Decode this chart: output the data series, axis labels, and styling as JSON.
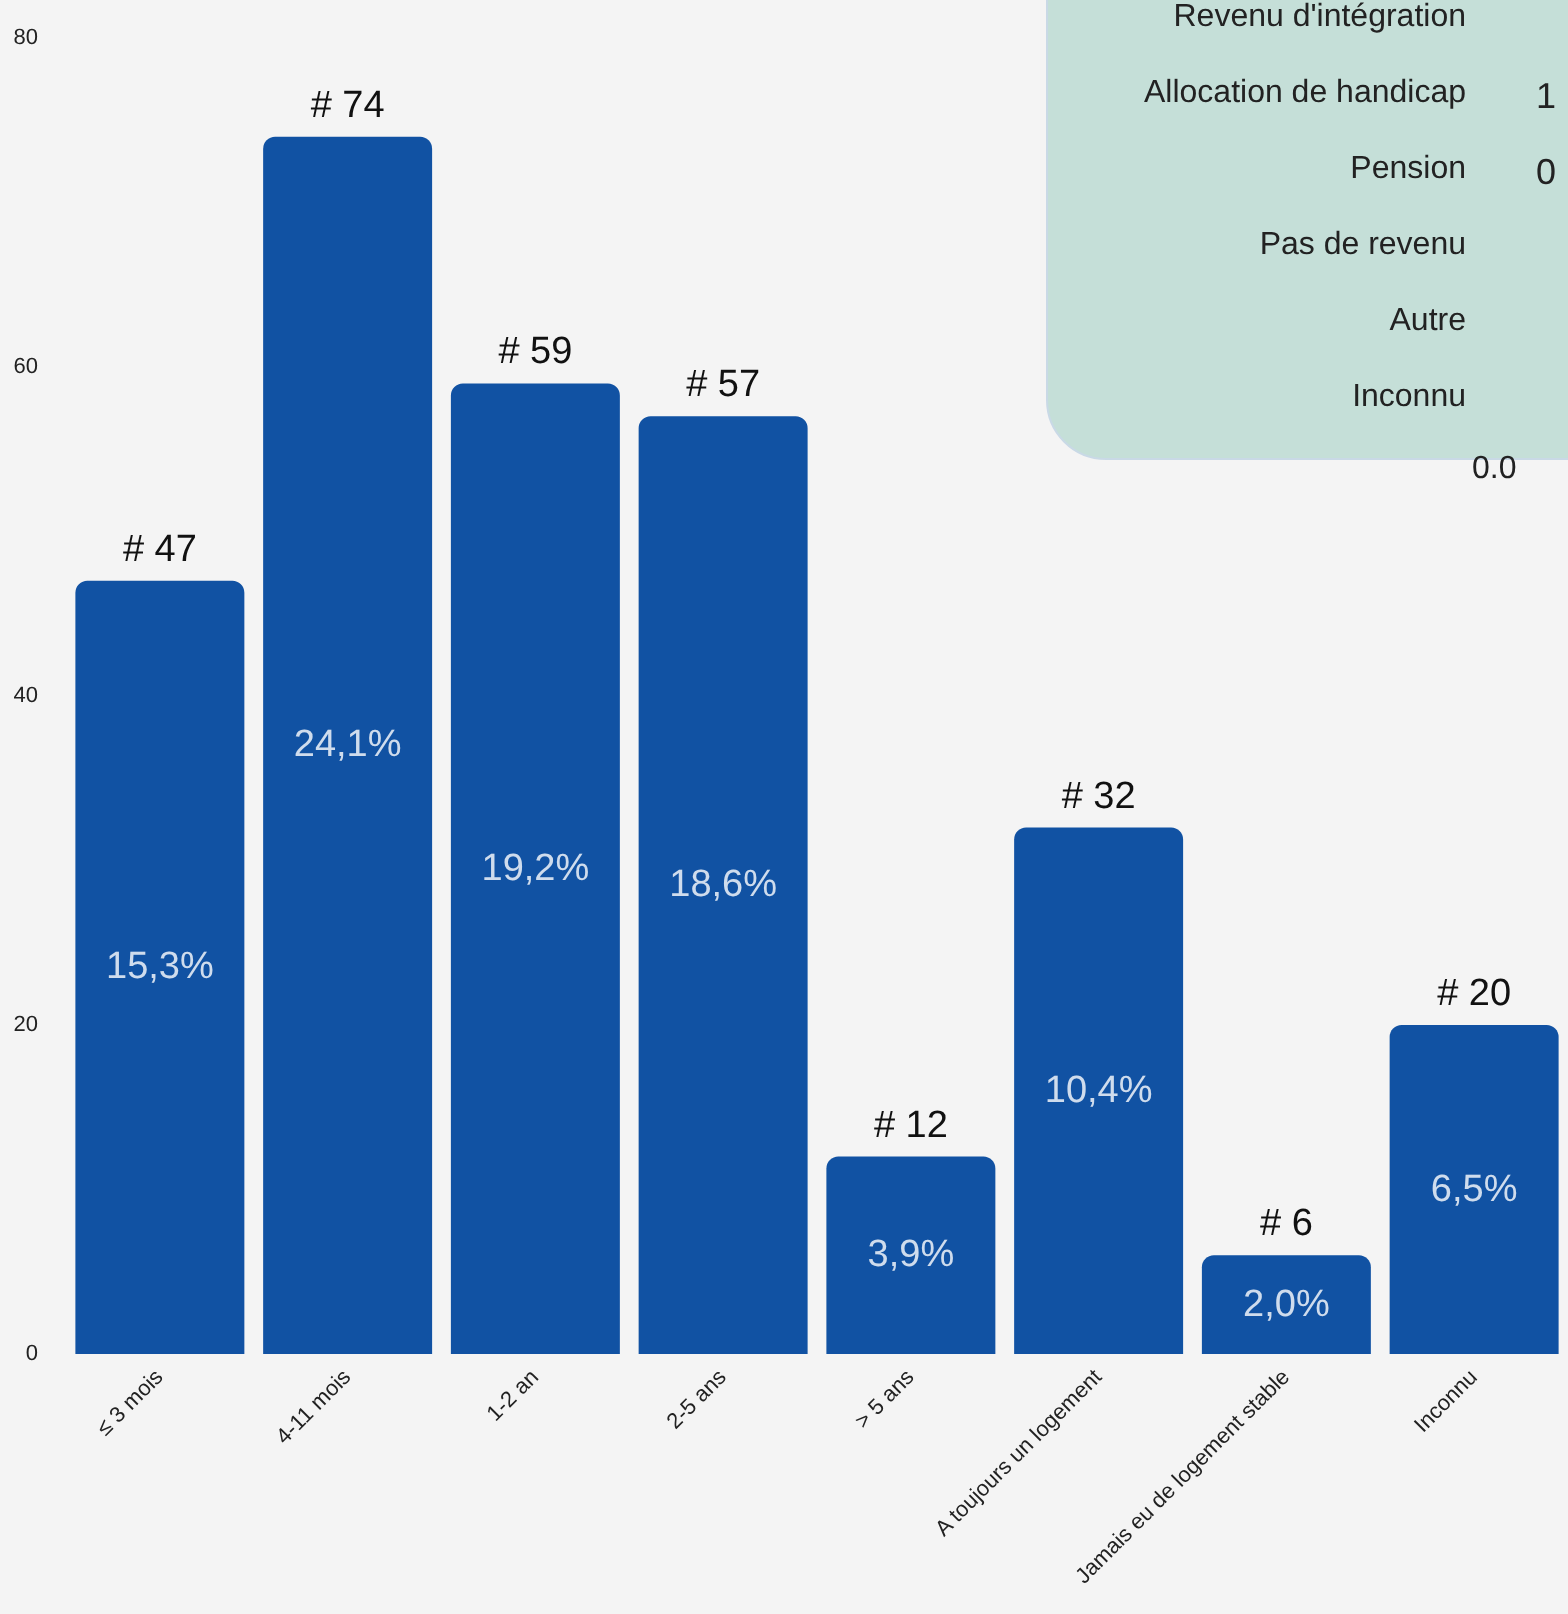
{
  "chart_data": [
    {
      "type": "bar",
      "categories": [
        "≤ 3 mois",
        "4-11 mois",
        "1-2 an",
        "2-5 ans",
        "> 5 ans",
        "A toujours un logement",
        "Jamais eu de logement stable",
        "Inconnu"
      ],
      "values": [
        47,
        74,
        59,
        57,
        12,
        32,
        6,
        20
      ],
      "color": "#1152a3",
      "value_labels": [
        "# 47",
        "# 74",
        "# 59",
        "# 57",
        "# 12",
        "# 32",
        "# 6",
        "# 20"
      ],
      "annotations": [
        "15,3%",
        "24,1%",
        "19,2%",
        "18,6%",
        "3,9%",
        "10,4%",
        "2,0%",
        "6,5%"
      ],
      "ylim": [
        0,
        80
      ],
      "yticks": [
        0,
        20,
        40,
        60,
        80
      ],
      "grid": false
    },
    {
      "type": "other",
      "categories": [
        "Revenu d'intégration",
        "Allocation de handicap",
        "Pension",
        "Pas de revenu",
        "Autre",
        "Inconnu"
      ],
      "annotations": [
        "1",
        "0",
        "0.0"
      ]
    }
  ]
}
